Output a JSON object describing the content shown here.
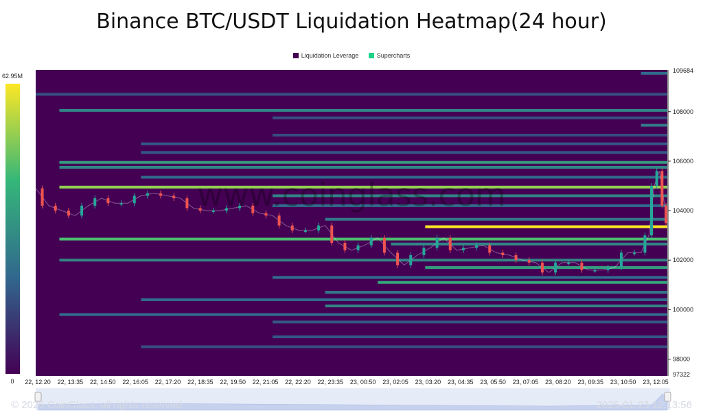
{
  "chart_data": {
    "type": "heatmap",
    "title": "Binance BTC/USDT Liquidation Heatmap(24 hour)",
    "legend": [
      {
        "name": "Liquidation Leverage",
        "color": "#440154"
      },
      {
        "name": "Supercharts",
        "color": "#1fd38a"
      }
    ],
    "colorbar": {
      "max_label": "62.95M",
      "min_label": "0",
      "colors": [
        "#440154",
        "#31688e",
        "#35b779",
        "#fde725"
      ]
    },
    "x_ticks": [
      "22, 12:20",
      "22, 13:35",
      "22, 14:50",
      "22, 16:05",
      "22, 17:20",
      "22, 18:35",
      "22, 19:50",
      "22, 21:05",
      "22, 22:20",
      "22, 23:35",
      "23, 00:50",
      "23, 02:05",
      "23, 03:20",
      "23, 04:35",
      "23, 05:50",
      "23, 07:05",
      "23, 08:20",
      "23, 09:35",
      "23, 10:50",
      "23, 12:05"
    ],
    "y_ticks": [
      98000,
      100000,
      102000,
      104000,
      106000,
      108000
    ],
    "y_min_label": "97322",
    "y_max_label": "109684",
    "ylim": [
      97322,
      109684
    ],
    "x_range_hours": [
      0,
      24
    ],
    "bands": [
      {
        "price": 109550,
        "start": 23.0,
        "intensity": 0.35
      },
      {
        "price": 108700,
        "start": 0.0,
        "intensity": 0.25
      },
      {
        "price": 108050,
        "start": 0.9,
        "intensity": 0.45
      },
      {
        "price": 107750,
        "start": 9.0,
        "intensity": 0.25
      },
      {
        "price": 107450,
        "start": 23.0,
        "intensity": 0.4
      },
      {
        "price": 107050,
        "start": 9.0,
        "intensity": 0.25
      },
      {
        "price": 106700,
        "start": 4.0,
        "intensity": 0.28
      },
      {
        "price": 106350,
        "start": 4.0,
        "intensity": 0.28
      },
      {
        "price": 105950,
        "start": 0.9,
        "intensity": 0.55
      },
      {
        "price": 105750,
        "start": 0.9,
        "intensity": 0.45
      },
      {
        "price": 105350,
        "start": 4.0,
        "intensity": 0.35
      },
      {
        "price": 104950,
        "start": 0.9,
        "intensity": 0.82
      },
      {
        "price": 104600,
        "start": 9.0,
        "intensity": 0.45
      },
      {
        "price": 104200,
        "start": 9.0,
        "intensity": 0.35
      },
      {
        "price": 103650,
        "start": 11.0,
        "intensity": 0.4
      },
      {
        "price": 103350,
        "start": 14.8,
        "intensity": 1.0
      },
      {
        "price": 102850,
        "start": 0.9,
        "intensity": 0.7
      },
      {
        "price": 102650,
        "start": 13.5,
        "intensity": 0.45
      },
      {
        "price": 102000,
        "start": 0.9,
        "intensity": 0.45
      },
      {
        "price": 101700,
        "start": 14.8,
        "intensity": 0.55
      },
      {
        "price": 101300,
        "start": 9.0,
        "intensity": 0.35
      },
      {
        "price": 101100,
        "start": 13.0,
        "intensity": 0.6
      },
      {
        "price": 100700,
        "start": 11.0,
        "intensity": 0.4
      },
      {
        "price": 100400,
        "start": 4.0,
        "intensity": 0.35
      },
      {
        "price": 100150,
        "start": 11.0,
        "intensity": 0.45
      },
      {
        "price": 99800,
        "start": 0.9,
        "intensity": 0.35
      },
      {
        "price": 99500,
        "start": 9.0,
        "intensity": 0.28
      },
      {
        "price": 98900,
        "start": 9.0,
        "intensity": 0.28
      },
      {
        "price": 98500,
        "start": 4.0,
        "intensity": 0.25
      }
    ],
    "price_path": [
      {
        "t": 0.0,
        "p": 104900
      },
      {
        "t": 0.5,
        "p": 104200
      },
      {
        "t": 1.0,
        "p": 104000
      },
      {
        "t": 1.5,
        "p": 103800
      },
      {
        "t": 2.0,
        "p": 104200
      },
      {
        "t": 2.5,
        "p": 104500
      },
      {
        "t": 3.0,
        "p": 104300
      },
      {
        "t": 3.5,
        "p": 104300
      },
      {
        "t": 4.0,
        "p": 104600
      },
      {
        "t": 4.5,
        "p": 104700
      },
      {
        "t": 5.0,
        "p": 104600
      },
      {
        "t": 5.5,
        "p": 104500
      },
      {
        "t": 6.0,
        "p": 104100
      },
      {
        "t": 6.5,
        "p": 104000
      },
      {
        "t": 7.0,
        "p": 104000
      },
      {
        "t": 7.5,
        "p": 104100
      },
      {
        "t": 8.0,
        "p": 104200
      },
      {
        "t": 8.5,
        "p": 103900
      },
      {
        "t": 9.0,
        "p": 103800
      },
      {
        "t": 9.5,
        "p": 103400
      },
      {
        "t": 10.0,
        "p": 103200
      },
      {
        "t": 10.5,
        "p": 103200
      },
      {
        "t": 11.0,
        "p": 103400
      },
      {
        "t": 11.5,
        "p": 102700
      },
      {
        "t": 12.0,
        "p": 102400
      },
      {
        "t": 12.5,
        "p": 102600
      },
      {
        "t": 13.0,
        "p": 102900
      },
      {
        "t": 13.5,
        "p": 102300
      },
      {
        "t": 14.0,
        "p": 101800
      },
      {
        "t": 14.5,
        "p": 102200
      },
      {
        "t": 15.0,
        "p": 102500
      },
      {
        "t": 15.5,
        "p": 102900
      },
      {
        "t": 16.0,
        "p": 102400
      },
      {
        "t": 16.5,
        "p": 102500
      },
      {
        "t": 17.0,
        "p": 102600
      },
      {
        "t": 17.5,
        "p": 102300
      },
      {
        "t": 18.0,
        "p": 102200
      },
      {
        "t": 18.5,
        "p": 102000
      },
      {
        "t": 19.0,
        "p": 101900
      },
      {
        "t": 19.5,
        "p": 101500
      },
      {
        "t": 20.0,
        "p": 101900
      },
      {
        "t": 20.5,
        "p": 101900
      },
      {
        "t": 21.0,
        "p": 101600
      },
      {
        "t": 21.5,
        "p": 101600
      },
      {
        "t": 22.0,
        "p": 101700
      },
      {
        "t": 22.5,
        "p": 102300
      },
      {
        "t": 23.0,
        "p": 102300
      },
      {
        "t": 23.3,
        "p": 103000
      },
      {
        "t": 23.5,
        "p": 105000
      },
      {
        "t": 23.7,
        "p": 105600
      },
      {
        "t": 23.9,
        "p": 104200
      },
      {
        "t": 24.0,
        "p": 103500
      }
    ],
    "watermark": "www.coinglass.com"
  },
  "footer": {
    "copyright": "© 2025 CoinGlass, all rights reserved",
    "timestamp": "2025-01-23 12:13:56"
  }
}
